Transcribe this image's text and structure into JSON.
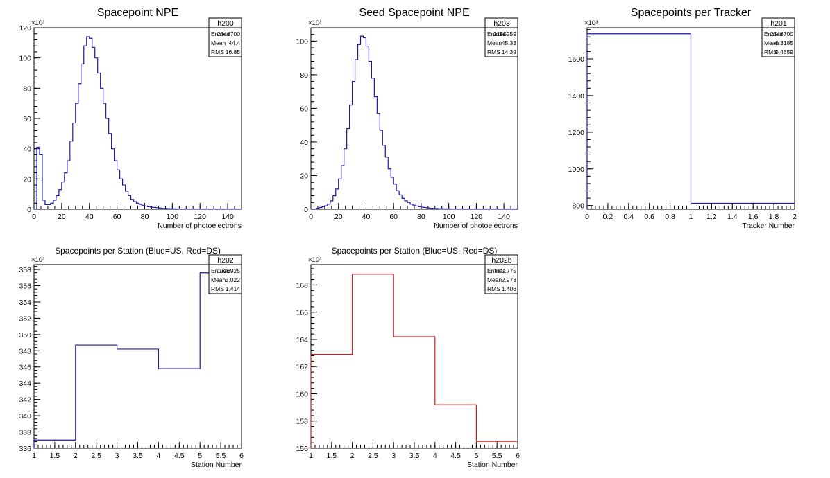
{
  "chart_data": [
    {
      "id": "h200",
      "type": "histogram",
      "title": "Spacepoint NPE",
      "xlabel": "Number of photoelectrons",
      "ylabel": "",
      "y_exponent": "×10³",
      "xlim": [
        0,
        150
      ],
      "ylim": [
        0,
        120
      ],
      "xticks": [
        0,
        20,
        40,
        60,
        80,
        100,
        120,
        140
      ],
      "yticks": [
        0,
        20,
        40,
        60,
        80,
        100,
        120
      ],
      "line_color": "#1a1aa6",
      "stats": {
        "name": "h200",
        "entries": "2548700",
        "mean": "44.4",
        "rms": "16.85"
      },
      "bin_width": 2,
      "values": [
        0,
        41,
        36,
        6,
        3,
        3,
        4,
        6,
        9,
        13,
        18,
        24,
        32,
        45,
        57,
        70,
        83,
        96,
        108,
        114,
        113,
        107,
        100,
        90,
        80,
        70,
        60,
        50,
        40,
        32,
        26,
        20,
        16,
        12,
        9,
        6.5,
        5,
        4,
        3.2,
        2.6,
        2.1,
        1.7,
        1.4,
        1.2,
        1,
        0.8,
        0.6,
        0.5,
        0.4,
        0.3,
        0.3,
        0.2,
        0.2,
        0.2,
        0.1,
        0.1,
        0.1,
        0.1,
        0.1,
        0.1,
        0.1,
        0.1,
        0.1,
        0.1,
        0.1,
        0.1,
        0.1,
        0.1,
        0.1,
        0.1,
        0.1,
        0.1,
        0.1,
        0.1,
        0.1
      ]
    },
    {
      "id": "h203",
      "type": "histogram",
      "title": "Seed Spacepoint NPE",
      "xlabel": "Number of photoelectrons",
      "ylabel": "",
      "y_exponent": "×10³",
      "xlim": [
        0,
        150
      ],
      "ylim": [
        0,
        108
      ],
      "xticks": [
        0,
        20,
        40,
        60,
        80,
        100,
        120,
        140
      ],
      "yticks": [
        0,
        20,
        40,
        60,
        80,
        100
      ],
      "line_color": "#1a1aa6",
      "stats": {
        "name": "h203",
        "entries": "2155259",
        "mean": "45.33",
        "rms": "14.39"
      },
      "bin_width": 2,
      "values": [
        0,
        0,
        0.5,
        1,
        1.5,
        2,
        3,
        5,
        8,
        12,
        18,
        26,
        36,
        48,
        62,
        76,
        89,
        98,
        103,
        102,
        97,
        88,
        78,
        67,
        57,
        47,
        38,
        31,
        24,
        19,
        15,
        11,
        8.5,
        6.5,
        5,
        4,
        3,
        2.4,
        1.9,
        1.5,
        1.2,
        1,
        0.8,
        0.6,
        0.5,
        0.4,
        0.3,
        0.3,
        0.2,
        0.2,
        0.2,
        0.1,
        0.1,
        0.1,
        0.1,
        0.1,
        0.1,
        0.1,
        0.1,
        0.1,
        0.1,
        0.1,
        0.1,
        0.1,
        0.1,
        0.1,
        0.1,
        0.1,
        0.1,
        0.1,
        0.1,
        0.1,
        0.1,
        0.1,
        0.1
      ]
    },
    {
      "id": "h201",
      "type": "histogram",
      "title": "Spacepoints per Tracker",
      "xlabel": "Tracker Number",
      "ylabel": "",
      "y_exponent": "×10³",
      "xlim": [
        0,
        2
      ],
      "ylim": [
        780,
        1770
      ],
      "xticks": [
        0,
        0.2,
        0.4,
        0.6,
        0.8,
        1,
        1.2,
        1.4,
        1.6,
        1.8,
        2
      ],
      "yticks": [
        800,
        1000,
        1200,
        1400,
        1600
      ],
      "line_color": "#1a1aa6",
      "stats": {
        "name": "h201",
        "entries": "2548700",
        "mean": "0.3185",
        "rms": "0.4659"
      },
      "bin_width": 1,
      "x_start": 0,
      "values": [
        1737,
        812
      ]
    },
    {
      "id": "h202",
      "type": "histogram",
      "title": "Spacepoints per Station (Blue=US, Red=DS)",
      "xlabel": "Station Number",
      "ylabel": "",
      "y_exponent": "×10³",
      "xlim": [
        1,
        6
      ],
      "ylim": [
        336,
        358.6
      ],
      "xticks": [
        1,
        1.5,
        2,
        2.5,
        3,
        3.5,
        4,
        4.5,
        5,
        5.5,
        6
      ],
      "yticks": [
        336,
        338,
        340,
        342,
        344,
        346,
        348,
        350,
        352,
        354,
        356,
        358
      ],
      "line_color": "#1a1aa6",
      "stats": {
        "name": "h202",
        "entries": "1736925",
        "mean": "3.022",
        "rms": "1.414"
      },
      "bin_width": 1,
      "x_start": 1,
      "values": [
        337,
        348.7,
        348.2,
        345.8,
        357.6
      ]
    },
    {
      "id": "h202b",
      "type": "histogram",
      "title": "Spacepoints per Station (Blue=US, Red=DS)",
      "xlabel": "Station Number",
      "ylabel": "",
      "y_exponent": "×10³",
      "xlim": [
        1,
        6
      ],
      "ylim": [
        156,
        169.5
      ],
      "xticks": [
        1,
        1.5,
        2,
        2.5,
        3,
        3.5,
        4,
        4.5,
        5,
        5.5,
        6
      ],
      "yticks": [
        156,
        158,
        160,
        162,
        164,
        166,
        168
      ],
      "line_color": "#c81e1e",
      "stats": {
        "name": "h202b",
        "entries": "811775",
        "mean": "2.973",
        "rms": "1.406"
      },
      "bin_width": 1,
      "x_start": 1,
      "values": [
        162.9,
        168.8,
        164.2,
        159.2,
        156.5
      ]
    }
  ],
  "labels": {
    "entries": "Entries",
    "mean": "Mean",
    "rms": "RMS"
  }
}
